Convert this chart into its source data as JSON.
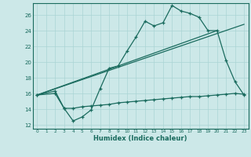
{
  "xlabel": "Humidex (Indice chaleur)",
  "bg_color": "#cce8e8",
  "line_color": "#1a6b5e",
  "grid_color": "#aad4d4",
  "xlim": [
    -0.5,
    23.5
  ],
  "ylim": [
    11.5,
    27.5
  ],
  "xticks": [
    0,
    1,
    2,
    3,
    4,
    5,
    6,
    7,
    8,
    9,
    10,
    11,
    12,
    13,
    14,
    15,
    16,
    17,
    18,
    19,
    20,
    21,
    22,
    23
  ],
  "yticks": [
    12,
    14,
    16,
    18,
    20,
    22,
    24,
    26
  ],
  "series1_x": [
    0,
    2,
    3,
    4,
    5,
    6,
    7,
    8,
    9,
    10,
    11,
    12,
    13,
    14,
    15,
    16,
    17,
    18,
    19,
    20,
    21,
    22,
    23
  ],
  "series1_y": [
    15.8,
    16.3,
    14.1,
    12.5,
    13.0,
    13.9,
    16.6,
    19.2,
    19.5,
    21.4,
    23.2,
    25.2,
    24.6,
    25.0,
    27.2,
    26.5,
    26.2,
    25.7,
    24.0,
    24.0,
    20.2,
    17.5,
    15.8
  ],
  "series2_x": [
    0,
    2,
    3,
    4,
    5,
    6,
    7,
    8,
    9,
    10,
    11,
    12,
    13,
    14,
    15,
    16,
    17,
    18,
    19,
    20,
    21,
    22,
    23
  ],
  "series2_y": [
    15.8,
    16.0,
    14.1,
    14.1,
    14.3,
    14.4,
    14.5,
    14.6,
    14.8,
    14.9,
    15.0,
    15.1,
    15.2,
    15.3,
    15.4,
    15.5,
    15.6,
    15.6,
    15.7,
    15.8,
    15.9,
    16.0,
    15.9
  ],
  "trend1_x": [
    0,
    20
  ],
  "trend1_y": [
    15.8,
    24.0
  ],
  "trend2_x": [
    0,
    23
  ],
  "trend2_y": [
    15.8,
    24.8
  ]
}
